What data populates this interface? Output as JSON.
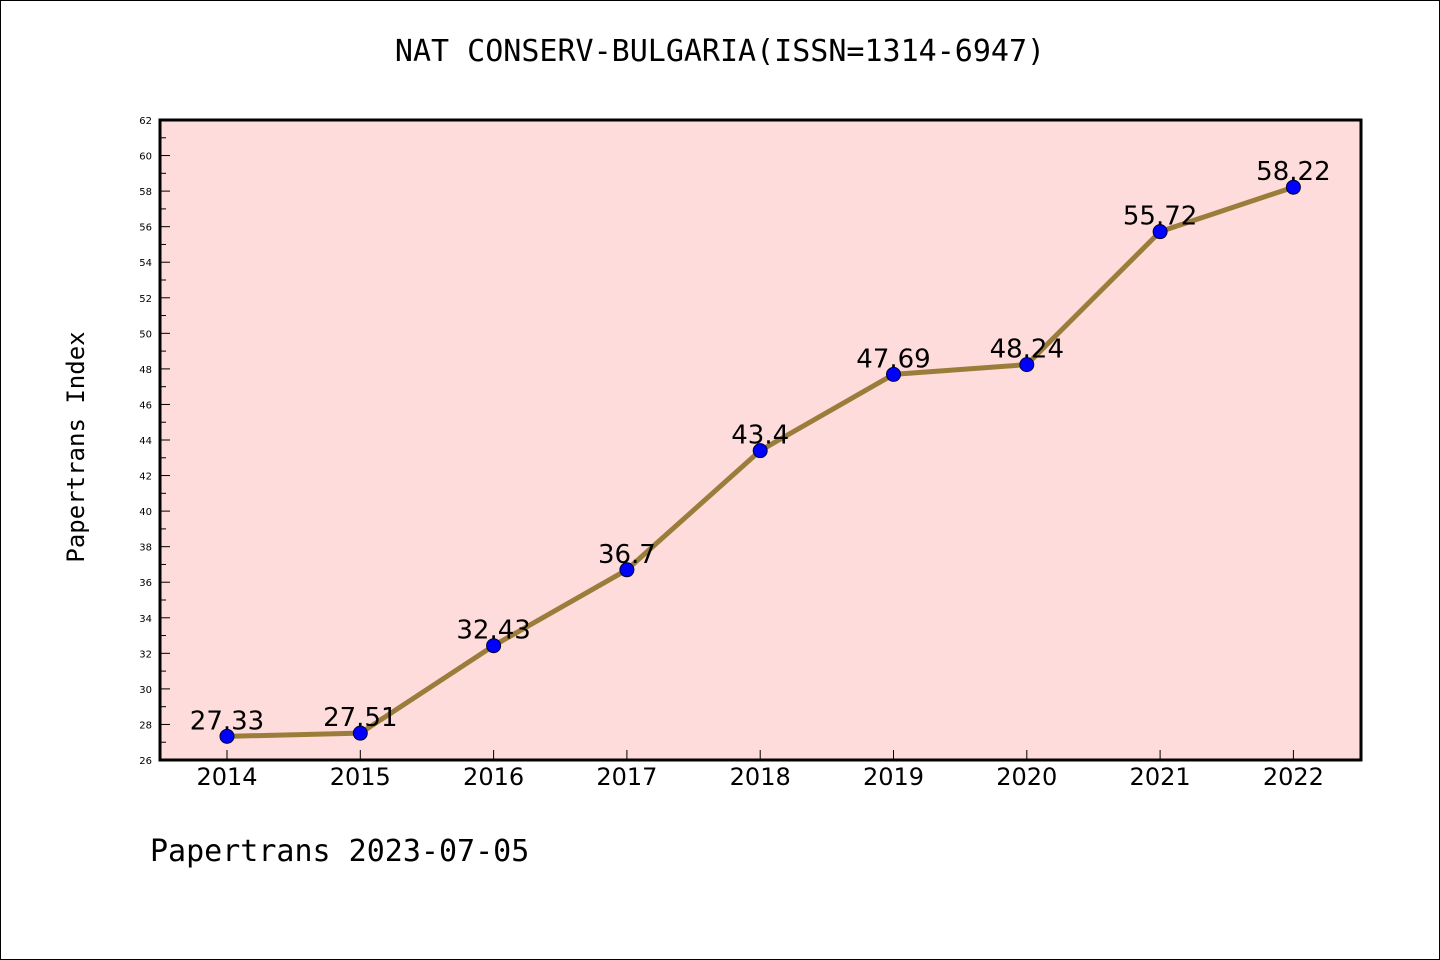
{
  "chart_data": {
    "type": "line",
    "title": "NAT CONSERV-BULGARIA(ISSN=1314-6947)",
    "xlabel": "",
    "ylabel": "Papertrans Index",
    "categories": [
      "2014",
      "2015",
      "2016",
      "2017",
      "2018",
      "2019",
      "2020",
      "2021",
      "2022"
    ],
    "series": [
      {
        "values": [
          27.33,
          27.51,
          32.43,
          36.7,
          43.4,
          47.69,
          48.24,
          55.72,
          58.22
        ],
        "labels": [
          "27.33",
          "27.51",
          "32.43",
          "36.7",
          "43.4",
          "47.69",
          "48.24",
          "55.72",
          "58.22"
        ]
      }
    ],
    "ylim": [
      26,
      62
    ],
    "yticks": [
      26,
      28,
      30,
      32,
      34,
      36,
      38,
      40,
      42,
      44,
      46,
      48,
      50,
      52,
      54,
      56,
      58,
      60,
      62
    ],
    "grid": false,
    "colors": {
      "plot_background": "#fddcdb",
      "line": "#9b7d3b",
      "marker": "#0000ff"
    }
  },
  "footer": "Papertrans 2023-07-05"
}
